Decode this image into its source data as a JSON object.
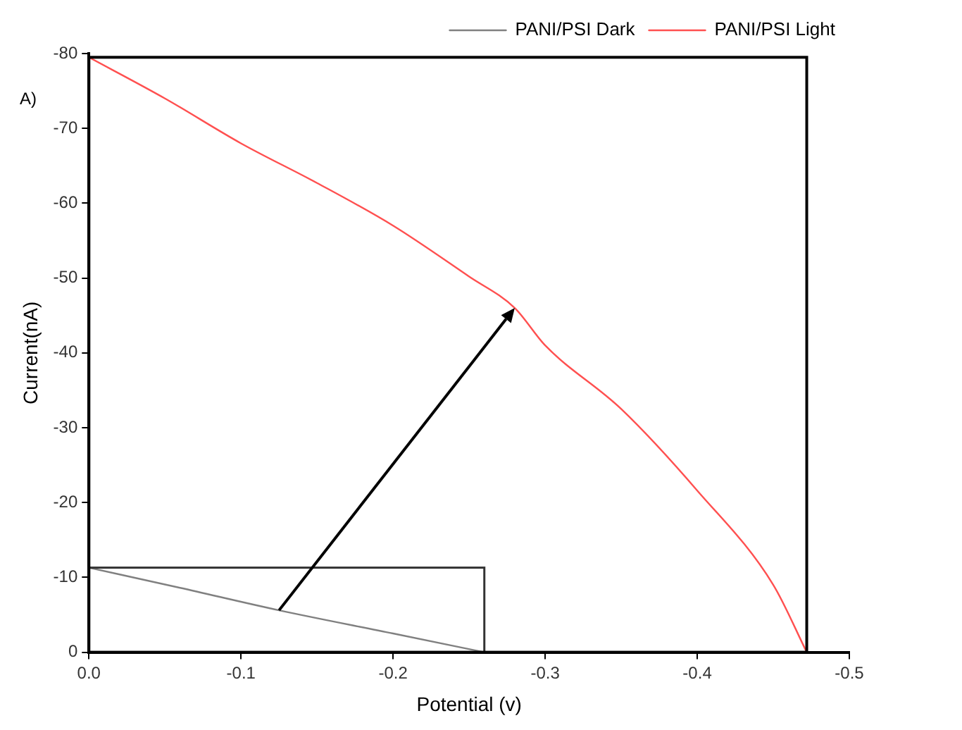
{
  "chart_data": {
    "type": "line",
    "xlabel": "Potential (v)",
    "ylabel": "Current(nA)",
    "annotations": [
      "A)"
    ],
    "series": [
      {
        "name": "PANI/PSI Dark",
        "color": "#808080",
        "x": [
          0,
          -0.06,
          -0.125,
          -0.2,
          -0.26
        ],
        "values": [
          -11.3,
          -8.6,
          -5.6,
          -2.5,
          0
        ]
      },
      {
        "name": "PANI/PSI Light",
        "color": "#ff5050",
        "x": [
          0,
          -0.05,
          -0.1,
          -0.15,
          -0.2,
          -0.25,
          -0.28,
          -0.3,
          -0.35,
          -0.4,
          -0.45,
          -0.472
        ],
        "values": [
          -79.5,
          -74,
          -68,
          -62.7,
          -57,
          -50.2,
          -46,
          -41,
          -32.5,
          -21.6,
          -9,
          0
        ]
      }
    ],
    "xlim": [
      0,
      -0.5
    ],
    "ylim": [
      0,
      -80
    ],
    "xticks": [
      {
        "value": 0,
        "label": "0.0"
      },
      -0.1,
      -0.2,
      -0.3,
      -0.4,
      -0.5
    ],
    "yticks": [
      0,
      -10,
      -20,
      -30,
      -40,
      -50,
      -60,
      -70,
      -80
    ],
    "grid": false,
    "legend": "top right",
    "marker": "none",
    "line_style": "solid"
  }
}
